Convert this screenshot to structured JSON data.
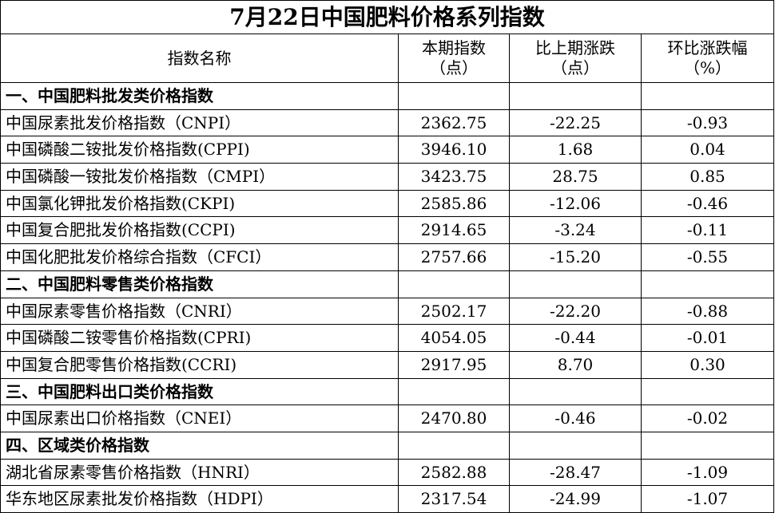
{
  "title": "7月22日中国肥料价格系列指数",
  "header": [
    {
      "label": "指数名称"
    },
    {
      "label": "本期指数",
      "unit": "（点）"
    },
    {
      "label": "比上期涨跌",
      "unit": "（点）"
    },
    {
      "label": "环比涨跌幅",
      "unit": "（%）"
    }
  ],
  "sections": [
    {
      "title": "一、中国肥料批发类价格指数",
      "rows": [
        [
          "中国尿素批发价格指数（CNPI）",
          "2362.75",
          "-22.25",
          "-0.93"
        ],
        [
          "中国磷酸二铵批发价格指数(CPPI)",
          "3946.10",
          "1.68",
          "0.04"
        ],
        [
          "中国磷酸一铵批发价格指数（CMPI）",
          "3423.75",
          "28.75",
          "0.85"
        ],
        [
          "中国氯化钾批发价格指数(CKPI)",
          "2585.86",
          "-12.06",
          "-0.46"
        ],
        [
          "中国复合肥批发价格指数(CCPI)",
          "2914.65",
          "-3.24",
          "-0.11"
        ],
        [
          "中国化肥批发价格综合指数（CFCI）",
          "2757.66",
          "-15.20",
          "-0.55"
        ]
      ]
    },
    {
      "title": "二、中国肥料零售类价格指数",
      "rows": [
        [
          "中国尿素零售价格指数（CNRI）",
          "2502.17",
          "-22.20",
          "-0.88"
        ],
        [
          "中国磷酸二铵零售价格指数(CPRI)",
          "4054.05",
          "-0.44",
          "-0.01"
        ],
        [
          "中国复合肥零售价格指数(CCRI)",
          "2917.95",
          "8.70",
          "0.30"
        ]
      ]
    },
    {
      "title": "三、中国肥料出口类价格指数",
      "rows": [
        [
          "中国尿素出口价格指数（CNEI）",
          "2470.80",
          "-0.46",
          "-0.02"
        ]
      ]
    },
    {
      "title": "四、区域类价格指数",
      "rows": [
        [
          "湖北省尿素零售价格指数（HNRI）",
          "2582.88",
          "-28.47",
          "-1.09"
        ],
        [
          "华东地区尿素批发价格指数（HDPI）",
          "2317.54",
          "-24.99",
          "-1.07"
        ]
      ]
    }
  ]
}
